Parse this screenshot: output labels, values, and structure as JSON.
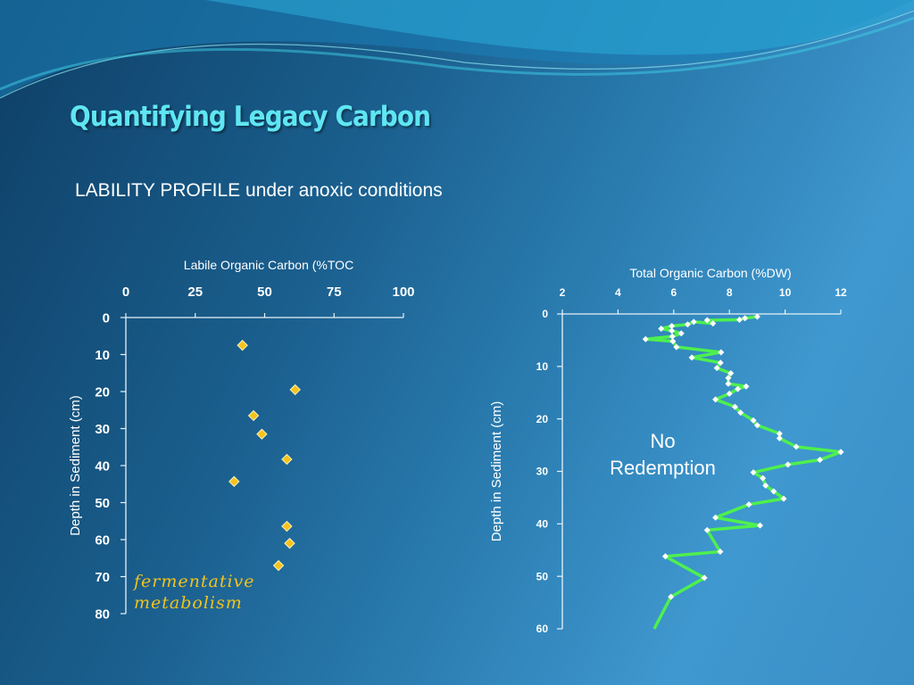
{
  "slide": {
    "title": "Quantifying Legacy Carbon",
    "subtitle": "LABILITY PROFILE under anoxic conditions"
  },
  "annotations": {
    "left_line1": "fermentative",
    "left_line2": "metabolism",
    "right_line1": "No",
    "right_line2": "Redemption"
  },
  "colors": {
    "title": "#5fe6f2",
    "marker_left": "#f7c21b",
    "line_right": "#4ef04e",
    "marker_right": "#ffffff",
    "annotation_left": "#f2c21b"
  },
  "chart_data": [
    {
      "type": "scatter",
      "title": "",
      "xlabel": "Labile Organic  Carbon (%TOC",
      "ylabel": "Depth in Sediment (cm)",
      "xlim": [
        0,
        100
      ],
      "ylim": [
        0,
        80
      ],
      "x_ticks": [
        "0",
        "25",
        "50",
        "75",
        "100"
      ],
      "y_ticks": [
        "0",
        "10",
        "20",
        "30",
        "40",
        "50",
        "60",
        "70",
        "80"
      ],
      "y_inverted": true,
      "grid": false,
      "points": [
        {
          "x": 42,
          "y": 7.5
        },
        {
          "x": 61,
          "y": 19.5
        },
        {
          "x": 46,
          "y": 26.5
        },
        {
          "x": 49,
          "y": 31.5
        },
        {
          "x": 58,
          "y": 38.3
        },
        {
          "x": 39,
          "y": 44.3
        },
        {
          "x": 58,
          "y": 56.4
        },
        {
          "x": 59,
          "y": 61
        },
        {
          "x": 55,
          "y": 67
        }
      ]
    },
    {
      "type": "line",
      "title": "",
      "xlabel": "Total Organic  Carbon (%DW)",
      "ylabel": "Depth in Sediment (cm)",
      "xlim": [
        2,
        12
      ],
      "ylim": [
        0,
        60
      ],
      "x_ticks": [
        "2",
        "4",
        "6",
        "8",
        "10",
        "12"
      ],
      "y_ticks": [
        "0",
        "10",
        "20",
        "30",
        "40",
        "50",
        "60"
      ],
      "y_inverted": true,
      "grid": false,
      "points": [
        {
          "x": 9.0,
          "y": 0.5
        },
        {
          "x": 8.56,
          "y": 0.8
        },
        {
          "x": 8.36,
          "y": 1.1
        },
        {
          "x": 7.2,
          "y": 1.2
        },
        {
          "x": 7.41,
          "y": 1.8
        },
        {
          "x": 6.72,
          "y": 1.5
        },
        {
          "x": 6.5,
          "y": 2.0
        },
        {
          "x": 5.93,
          "y": 2.3
        },
        {
          "x": 5.55,
          "y": 2.8
        },
        {
          "x": 5.93,
          "y": 3.2
        },
        {
          "x": 6.27,
          "y": 3.7
        },
        {
          "x": 5.95,
          "y": 4.3
        },
        {
          "x": 4.99,
          "y": 4.8
        },
        {
          "x": 5.97,
          "y": 5.2
        },
        {
          "x": 6.1,
          "y": 6.3
        },
        {
          "x": 7.7,
          "y": 7.3
        },
        {
          "x": 6.65,
          "y": 8.3
        },
        {
          "x": 7.68,
          "y": 9.3
        },
        {
          "x": 7.55,
          "y": 10.3
        },
        {
          "x": 8.05,
          "y": 11.3
        },
        {
          "x": 7.96,
          "y": 12.2
        },
        {
          "x": 7.96,
          "y": 13.3
        },
        {
          "x": 8.6,
          "y": 13.8
        },
        {
          "x": 8.3,
          "y": 14.3
        },
        {
          "x": 8.0,
          "y": 15.2
        },
        {
          "x": 7.5,
          "y": 16.3
        },
        {
          "x": 8.2,
          "y": 17.7
        },
        {
          "x": 8.4,
          "y": 18.8
        },
        {
          "x": 8.86,
          "y": 20.3
        },
        {
          "x": 9.0,
          "y": 21.2
        },
        {
          "x": 9.8,
          "y": 22.8
        },
        {
          "x": 9.8,
          "y": 23.7
        },
        {
          "x": 10.4,
          "y": 25.3
        },
        {
          "x": 12.0,
          "y": 26.3
        },
        {
          "x": 11.25,
          "y": 27.8
        },
        {
          "x": 10.1,
          "y": 28.7
        },
        {
          "x": 8.86,
          "y": 30.2
        },
        {
          "x": 9.2,
          "y": 31.3
        },
        {
          "x": 9.3,
          "y": 32.7
        },
        {
          "x": 9.59,
          "y": 33.8
        },
        {
          "x": 9.95,
          "y": 35.2
        },
        {
          "x": 8.7,
          "y": 36.3
        },
        {
          "x": 7.5,
          "y": 38.8
        },
        {
          "x": 9.1,
          "y": 40.3
        },
        {
          "x": 7.2,
          "y": 41.2
        },
        {
          "x": 7.67,
          "y": 45.3
        },
        {
          "x": 5.7,
          "y": 46.2
        },
        {
          "x": 7.1,
          "y": 50.3
        },
        {
          "x": 5.9,
          "y": 53.9
        }
      ],
      "line_end": {
        "x": 5.3,
        "y": 60
      }
    }
  ]
}
